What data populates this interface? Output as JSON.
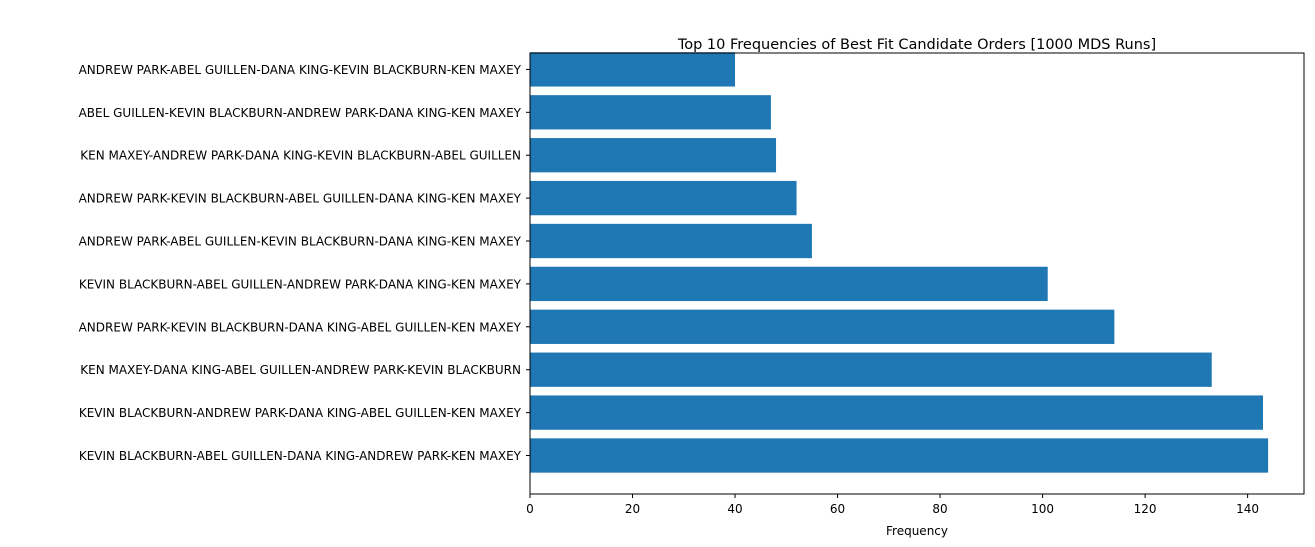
{
  "chart_data": {
    "type": "bar",
    "orientation": "horizontal",
    "title": "Top 10 Frequencies of Best Fit Candidate Orders [1000 MDS Runs]",
    "xlabel": "Frequency",
    "ylabel": "",
    "xlim": [
      0,
      151
    ],
    "xticks": [
      0,
      20,
      40,
      60,
      80,
      100,
      120,
      140
    ],
    "grid": false,
    "bar_color": "#1f77b4",
    "categories": [
      "KEVIN BLACKBURN-ABEL GUILLEN-DANA KING-ANDREW PARK-KEN MAXEY",
      "KEVIN BLACKBURN-ANDREW PARK-DANA KING-ABEL GUILLEN-KEN MAXEY",
      "KEN MAXEY-DANA KING-ABEL GUILLEN-ANDREW PARK-KEVIN BLACKBURN",
      "ANDREW PARK-KEVIN BLACKBURN-DANA KING-ABEL GUILLEN-KEN MAXEY",
      "KEVIN BLACKBURN-ABEL GUILLEN-ANDREW PARK-DANA KING-KEN MAXEY",
      "ANDREW PARK-ABEL GUILLEN-KEVIN BLACKBURN-DANA KING-KEN MAXEY",
      "ANDREW PARK-KEVIN BLACKBURN-ABEL GUILLEN-DANA KING-KEN MAXEY",
      "KEN MAXEY-ANDREW PARK-DANA KING-KEVIN BLACKBURN-ABEL GUILLEN",
      "ABEL GUILLEN-KEVIN BLACKBURN-ANDREW PARK-DANA KING-KEN MAXEY",
      "ANDREW PARK-ABEL GUILLEN-DANA KING-KEVIN BLACKBURN-KEN MAXEY"
    ],
    "values": [
      144,
      143,
      133,
      114,
      101,
      55,
      52,
      48,
      47,
      40
    ]
  }
}
